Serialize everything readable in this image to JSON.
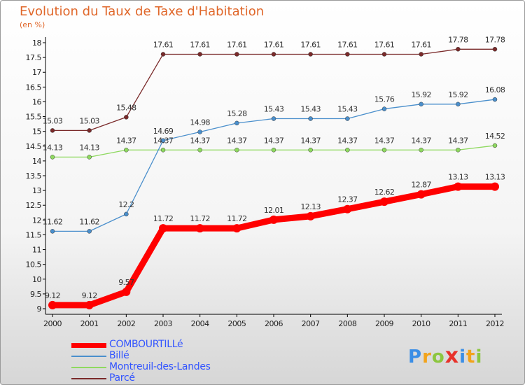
{
  "title": "Evolution du Taux de Taxe d'Habitation",
  "subtitle": "(en %)",
  "chart_data": {
    "type": "line",
    "title": "Evolution du Taux de Taxe d'Habitation",
    "ylabel": "(en %)",
    "x": [
      2000,
      2001,
      2002,
      2003,
      2004,
      2005,
      2006,
      2007,
      2008,
      2009,
      2010,
      2011,
      2012
    ],
    "ylim": [
      9,
      18
    ],
    "yticks": [
      "9",
      "9.5",
      "10",
      "10.5",
      "11",
      "11.5",
      "12",
      "12.5",
      "13",
      "13.5",
      "14",
      "14.5",
      "15",
      "15.5",
      "16",
      "16.5",
      "17",
      "17.5",
      "18"
    ],
    "grid": false,
    "legend": "bottom-left",
    "series": [
      {
        "name": "COMBOURTILLé",
        "color": "#ff0000",
        "values": [
          9.12,
          9.12,
          9.57,
          11.72,
          11.72,
          11.72,
          12.01,
          12.13,
          12.37,
          12.62,
          12.87,
          13.13,
          13.13
        ],
        "labels": [
          "9.12",
          "9.12",
          "9.57",
          "11.72",
          "11.72",
          "11.72",
          "12.01",
          "12.13",
          "12.37",
          "12.62",
          "12.87",
          "13.13",
          "13.13"
        ]
      },
      {
        "name": "Billé",
        "color": "#4a8fcc",
        "values": [
          11.62,
          11.62,
          12.2,
          14.69,
          14.98,
          15.28,
          15.43,
          15.43,
          15.43,
          15.76,
          15.92,
          15.92,
          16.08
        ],
        "labels": [
          "11.62",
          "11.62",
          "12.2",
          "14.69",
          "14.98",
          "15.28",
          "15.43",
          "15.43",
          "15.43",
          "15.76",
          "15.92",
          "15.92",
          "16.08"
        ]
      },
      {
        "name": "Montreuil-des-Landes",
        "color": "#8ed95f",
        "values": [
          14.13,
          14.13,
          14.37,
          14.37,
          14.37,
          14.37,
          14.37,
          14.37,
          14.37,
          14.37,
          14.37,
          14.37,
          14.52
        ],
        "labels": [
          "14.13",
          "14.13",
          "14.37",
          "14.37",
          "14.37",
          "14.37",
          "14.37",
          "14.37",
          "14.37",
          "14.37",
          "14.37",
          "14.37",
          "14.52"
        ]
      },
      {
        "name": "Parcé",
        "color": "#7a2a2a",
        "values": [
          15.03,
          15.03,
          15.48,
          17.61,
          17.61,
          17.61,
          17.61,
          17.61,
          17.61,
          17.61,
          17.61,
          17.78,
          17.78
        ],
        "labels": [
          "15.03",
          "15.03",
          "15.48",
          "17.61",
          "17.61",
          "17.61",
          "17.61",
          "17.61",
          "17.61",
          "17.61",
          "17.61",
          "17.78",
          "17.78"
        ]
      }
    ]
  },
  "logo": {
    "letters": [
      "P",
      "r",
      "o",
      "x",
      "i",
      "t",
      "i"
    ],
    "colors": [
      "#3a8ee6",
      "#f2a31b",
      "#8cc63f",
      "#e8322a",
      "#3a8ee6",
      "#f2a31b",
      "#8cc63f"
    ]
  }
}
